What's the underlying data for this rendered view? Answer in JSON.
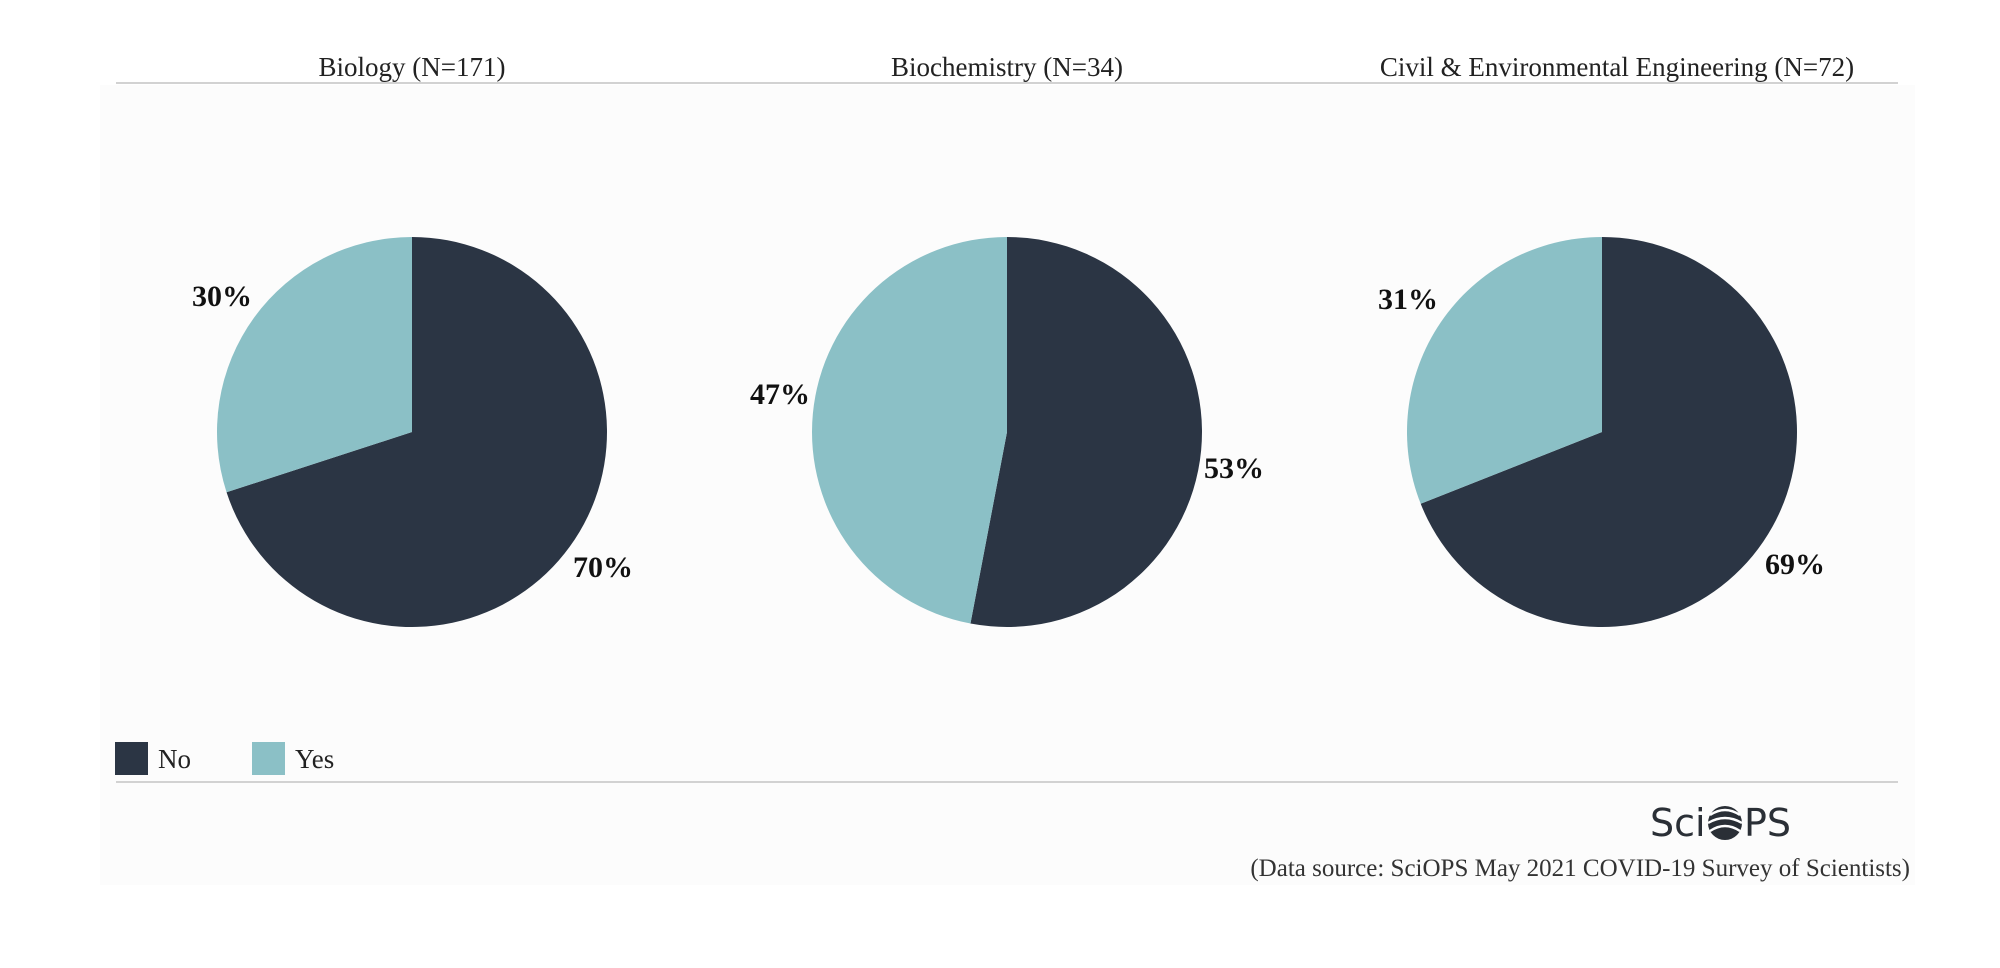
{
  "chart_data": [
    {
      "type": "pie",
      "title": "Biology (N=171)",
      "slices": [
        {
          "name": "No",
          "value": 70,
          "label": "70%"
        },
        {
          "name": "Yes",
          "value": 30,
          "label": "30%"
        }
      ]
    },
    {
      "type": "pie",
      "title": "Biochemistry (N=34)",
      "slices": [
        {
          "name": "No",
          "value": 53,
          "label": "53%"
        },
        {
          "name": "Yes",
          "value": 47,
          "label": "47%"
        }
      ]
    },
    {
      "type": "pie",
      "title": "Civil & Environmental Engineering (N=72)",
      "slices": [
        {
          "name": "No",
          "value": 69,
          "label": "69%"
        },
        {
          "name": "Yes",
          "value": 31,
          "label": "31%"
        }
      ]
    }
  ],
  "legend": {
    "placement": "bottom-left",
    "items": [
      {
        "name": "No",
        "color": "#2b3544"
      },
      {
        "name": "Yes",
        "color": "#8bc0c6"
      }
    ]
  },
  "logo": {
    "text": "SciOPS",
    "icon": "globe-logo-icon"
  },
  "source": "(Data source: SciOPS May 2021 COVID-19 Survey of Scientists)",
  "colors": {
    "no": "#2b3544",
    "yes": "#8bc0c6",
    "rule": "#d2d2d2",
    "panel": "#fcfcfc"
  }
}
